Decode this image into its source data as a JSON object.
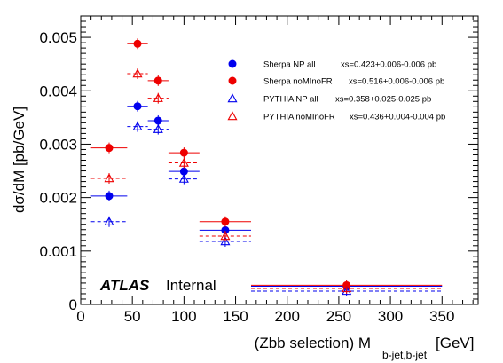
{
  "chart_data": {
    "type": "scatter",
    "xlabel_main": "(Zbb selection) M",
    "xlabel_sub": "b-jet,b-jet",
    "xlabel_unit": "[GeV]",
    "ylabel": "dσ/dM [pb/GeV]",
    "xlim": [
      0,
      385
    ],
    "ylim": [
      0,
      0.0054
    ],
    "x_ticks": [
      0,
      50,
      100,
      150,
      200,
      250,
      300,
      350
    ],
    "x_tick_labels": [
      "0",
      "50",
      "100",
      "150",
      "200",
      "250",
      "300",
      "350"
    ],
    "y_ticks": [
      0,
      0.001,
      0.002,
      0.003,
      0.004,
      0.005
    ],
    "y_tick_labels": [
      "0",
      "0.001",
      "0.002",
      "0.003",
      "0.004",
      "0.005"
    ],
    "atlas_label": "ATLAS",
    "atlas_sub": "Internal",
    "legend_placement": "top-right",
    "bins": [
      {
        "low": 10,
        "high": 45
      },
      {
        "low": 45,
        "high": 65
      },
      {
        "low": 65,
        "high": 85
      },
      {
        "low": 85,
        "high": 115
      },
      {
        "low": 115,
        "high": 165
      },
      {
        "low": 165,
        "high": 350
      }
    ],
    "series": [
      {
        "name": "Sherpa NP all",
        "xs": "xs=0.423+0.006-0.006 pb",
        "color": "#0000ee",
        "marker": "circle",
        "line_style": "solid",
        "x": [
          27.5,
          55,
          75,
          100,
          140,
          257.5
        ],
        "y": [
          0.00203,
          0.00371,
          0.00344,
          0.00249,
          0.00139,
          0.00034
        ]
      },
      {
        "name": "Sherpa noMInoFR",
        "xs": "xs=0.516+0.006-0.006 pb",
        "color": "#ee0000",
        "marker": "circle",
        "line_style": "solid",
        "x": [
          27.5,
          55,
          75,
          100,
          140,
          257.5
        ],
        "y": [
          0.00293,
          0.00488,
          0.00419,
          0.00284,
          0.00155,
          0.00036
        ]
      },
      {
        "name": "PYTHIA NP all",
        "xs": "xs=0.358+0.025-0.025 pb",
        "color": "#0000ee",
        "marker": "open-triangle",
        "line_style": "dashed",
        "x": [
          27.5,
          55,
          75,
          100,
          140,
          257.5
        ],
        "y": [
          0.00155,
          0.00333,
          0.00328,
          0.00235,
          0.00118,
          0.00025
        ]
      },
      {
        "name": "PYTHIA noMInoFR",
        "xs": "xs=0.436+0.004-0.004 pb",
        "color": "#ee0000",
        "marker": "open-triangle",
        "line_style": "dashed",
        "x": [
          27.5,
          55,
          75,
          100,
          140,
          257.5
        ],
        "y": [
          0.00236,
          0.00432,
          0.00386,
          0.00265,
          0.00128,
          0.0003
        ]
      }
    ]
  }
}
